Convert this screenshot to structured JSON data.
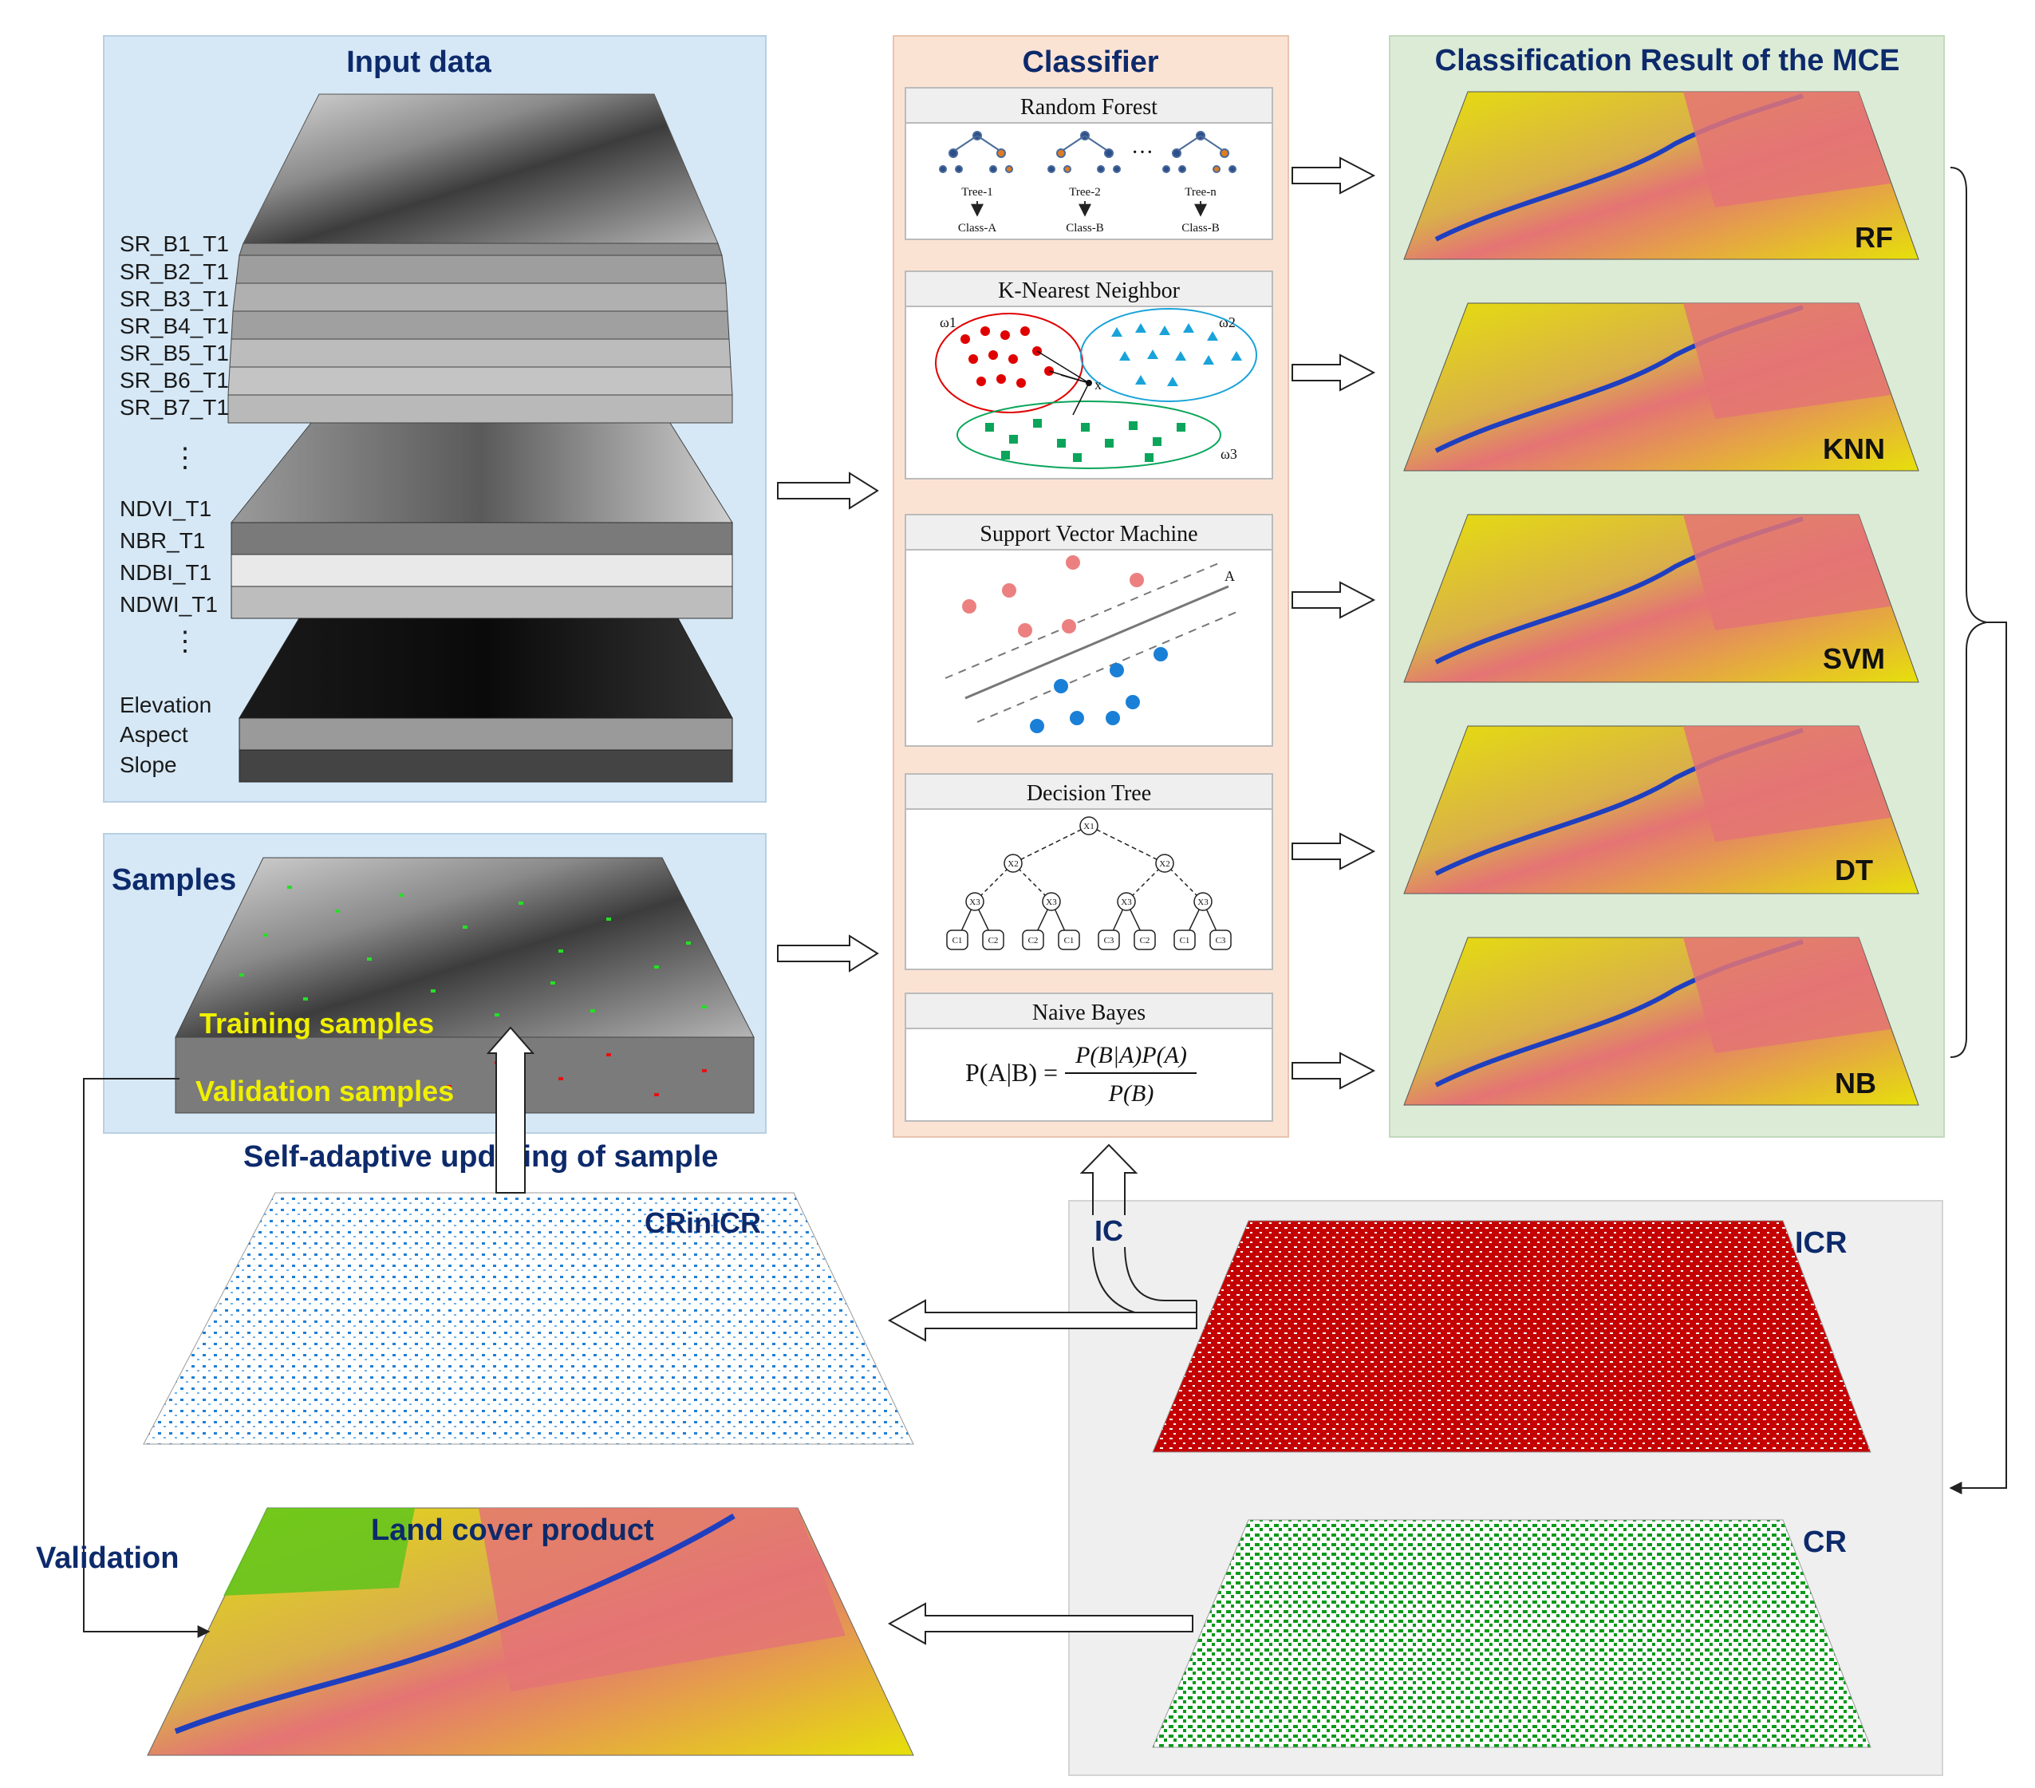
{
  "input_panel": {
    "title": "Input data",
    "bands_group1": [
      "SR_B1_T1",
      "SR_B2_T1",
      "SR_B3_T1",
      "SR_B4_T1",
      "SR_B5_T1",
      "SR_B6_T1",
      "SR_B7_T1"
    ],
    "bands_group2": [
      "NDVI_T1",
      "NBR_T1",
      "NDBI_T1",
      "NDWI_T1"
    ],
    "bands_group3": [
      "Elevation",
      "Aspect",
      "Slope"
    ],
    "ellipsis": "⋮"
  },
  "samples_panel": {
    "title": "Samples",
    "training": "Training samples",
    "validation": "Validation samples"
  },
  "classifier_panel": {
    "title": "Classifier",
    "rf": {
      "title": "Random Forest",
      "trees": [
        "Tree-1",
        "Tree-2",
        "Tree-n"
      ],
      "classes": [
        "Class-A",
        "Class-B",
        "Class-B"
      ],
      "dots": "···"
    },
    "knn": {
      "title": "K-Nearest Neighbor",
      "w1": "ω1",
      "w2": "ω2",
      "w3": "ω3",
      "xu": "x"
    },
    "svm": {
      "title": "Support Vector Machine",
      "a": "A"
    },
    "dt": {
      "title": "Decision Tree",
      "root": "X1",
      "mid": [
        "X2",
        "X2"
      ],
      "lower": [
        "X3",
        "X3",
        "X3",
        "X3"
      ],
      "leaves": [
        "C1",
        "C2",
        "C2",
        "C1",
        "C3",
        "C2",
        "C1",
        "C3"
      ]
    },
    "nb": {
      "title": "Naive Bayes",
      "lhs": "P(A|B) =",
      "numerator": "P(B|A)P(A)",
      "denominator": "P(B)"
    }
  },
  "result_panel": {
    "title": "Classification Result of the MCE",
    "maps": [
      "RF",
      "KNN",
      "SVM",
      "DT",
      "NB"
    ]
  },
  "bottom": {
    "self_adaptive": "Self-adaptive updating of sample",
    "crinicr": "CRinICR",
    "icr": "ICR",
    "cr": "CR",
    "ic": "IC",
    "validation": "Validation",
    "land_cover": "Land cover product"
  },
  "colors": {
    "input_bg": "#d6e8f6",
    "classifier_bg": "#fbe3d4",
    "result_bg": "#dcebd6",
    "cr_bg": "#efefef",
    "title": "#0d2a6b",
    "sample_text": "#f0f000",
    "class_red": "#e47474",
    "class_yellow": "#e6e00a",
    "class_green": "#56c41c",
    "class_water": "#1f3fbf",
    "icr_red": "#c40000",
    "cr_green": "#0a9a1a",
    "crinicr_blue": "#1e7fd6"
  }
}
